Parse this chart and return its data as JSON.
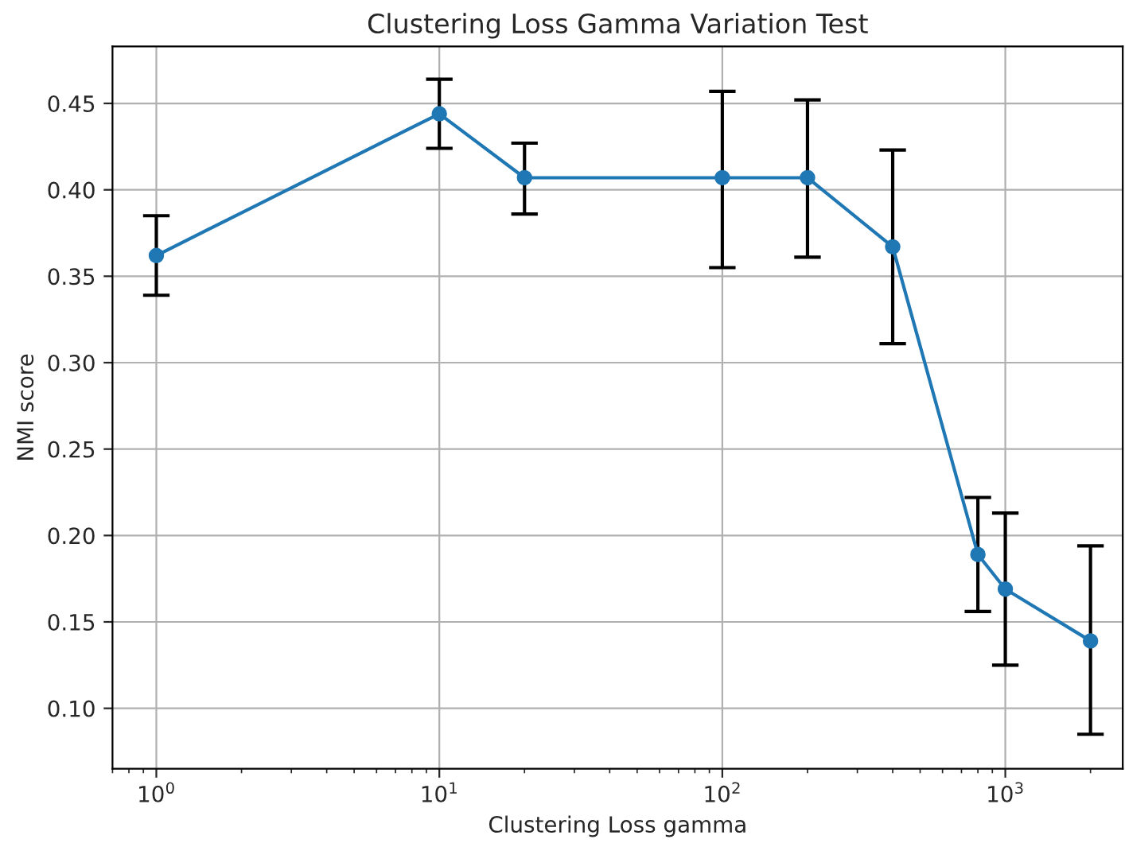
{
  "chart_data": {
    "type": "line",
    "title": "Clustering Loss Gamma Variation Test",
    "xlabel": "Clustering Loss gamma",
    "ylabel": "NMI score",
    "x": [
      1,
      10,
      20,
      100,
      200,
      400,
      800,
      1000,
      2000
    ],
    "series": [
      {
        "color": "#1f77b4",
        "values": [
          0.362,
          0.444,
          0.407,
          0.407,
          0.407,
          0.367,
          0.189,
          0.169,
          0.139
        ],
        "errors": [
          [
            0.339,
            0.385
          ],
          [
            0.424,
            0.464
          ],
          [
            0.386,
            0.427
          ],
          [
            0.355,
            0.457
          ],
          [
            0.361,
            0.452
          ],
          [
            0.311,
            0.423
          ],
          [
            0.156,
            0.222
          ],
          [
            0.125,
            0.213
          ],
          [
            0.085,
            0.194
          ]
        ]
      }
    ],
    "marker": "circle",
    "line_style": "solid",
    "log": "x",
    "grid": true,
    "xlim": [
      0.7,
      2600
    ],
    "xticks": [
      {
        "value": 1,
        "label": "10$^{0}$"
      },
      {
        "value": 10,
        "label": "10$^{1}$"
      },
      {
        "value": 100,
        "label": "10$^{2}$"
      },
      {
        "value": 1000,
        "label": "10$^{3}$"
      }
    ],
    "ylim": [
      0.065,
      0.483
    ],
    "yticks": [
      {
        "value": 0.1,
        "label": "0.10"
      },
      {
        "value": 0.15,
        "label": "0.15"
      },
      {
        "value": 0.2,
        "label": "0.20"
      },
      {
        "value": 0.25,
        "label": "0.25"
      },
      {
        "value": 0.3,
        "label": "0.30"
      },
      {
        "value": 0.35,
        "label": "0.35"
      },
      {
        "value": 0.4,
        "label": "0.40"
      },
      {
        "value": 0.45,
        "label": "0.45"
      }
    ]
  }
}
